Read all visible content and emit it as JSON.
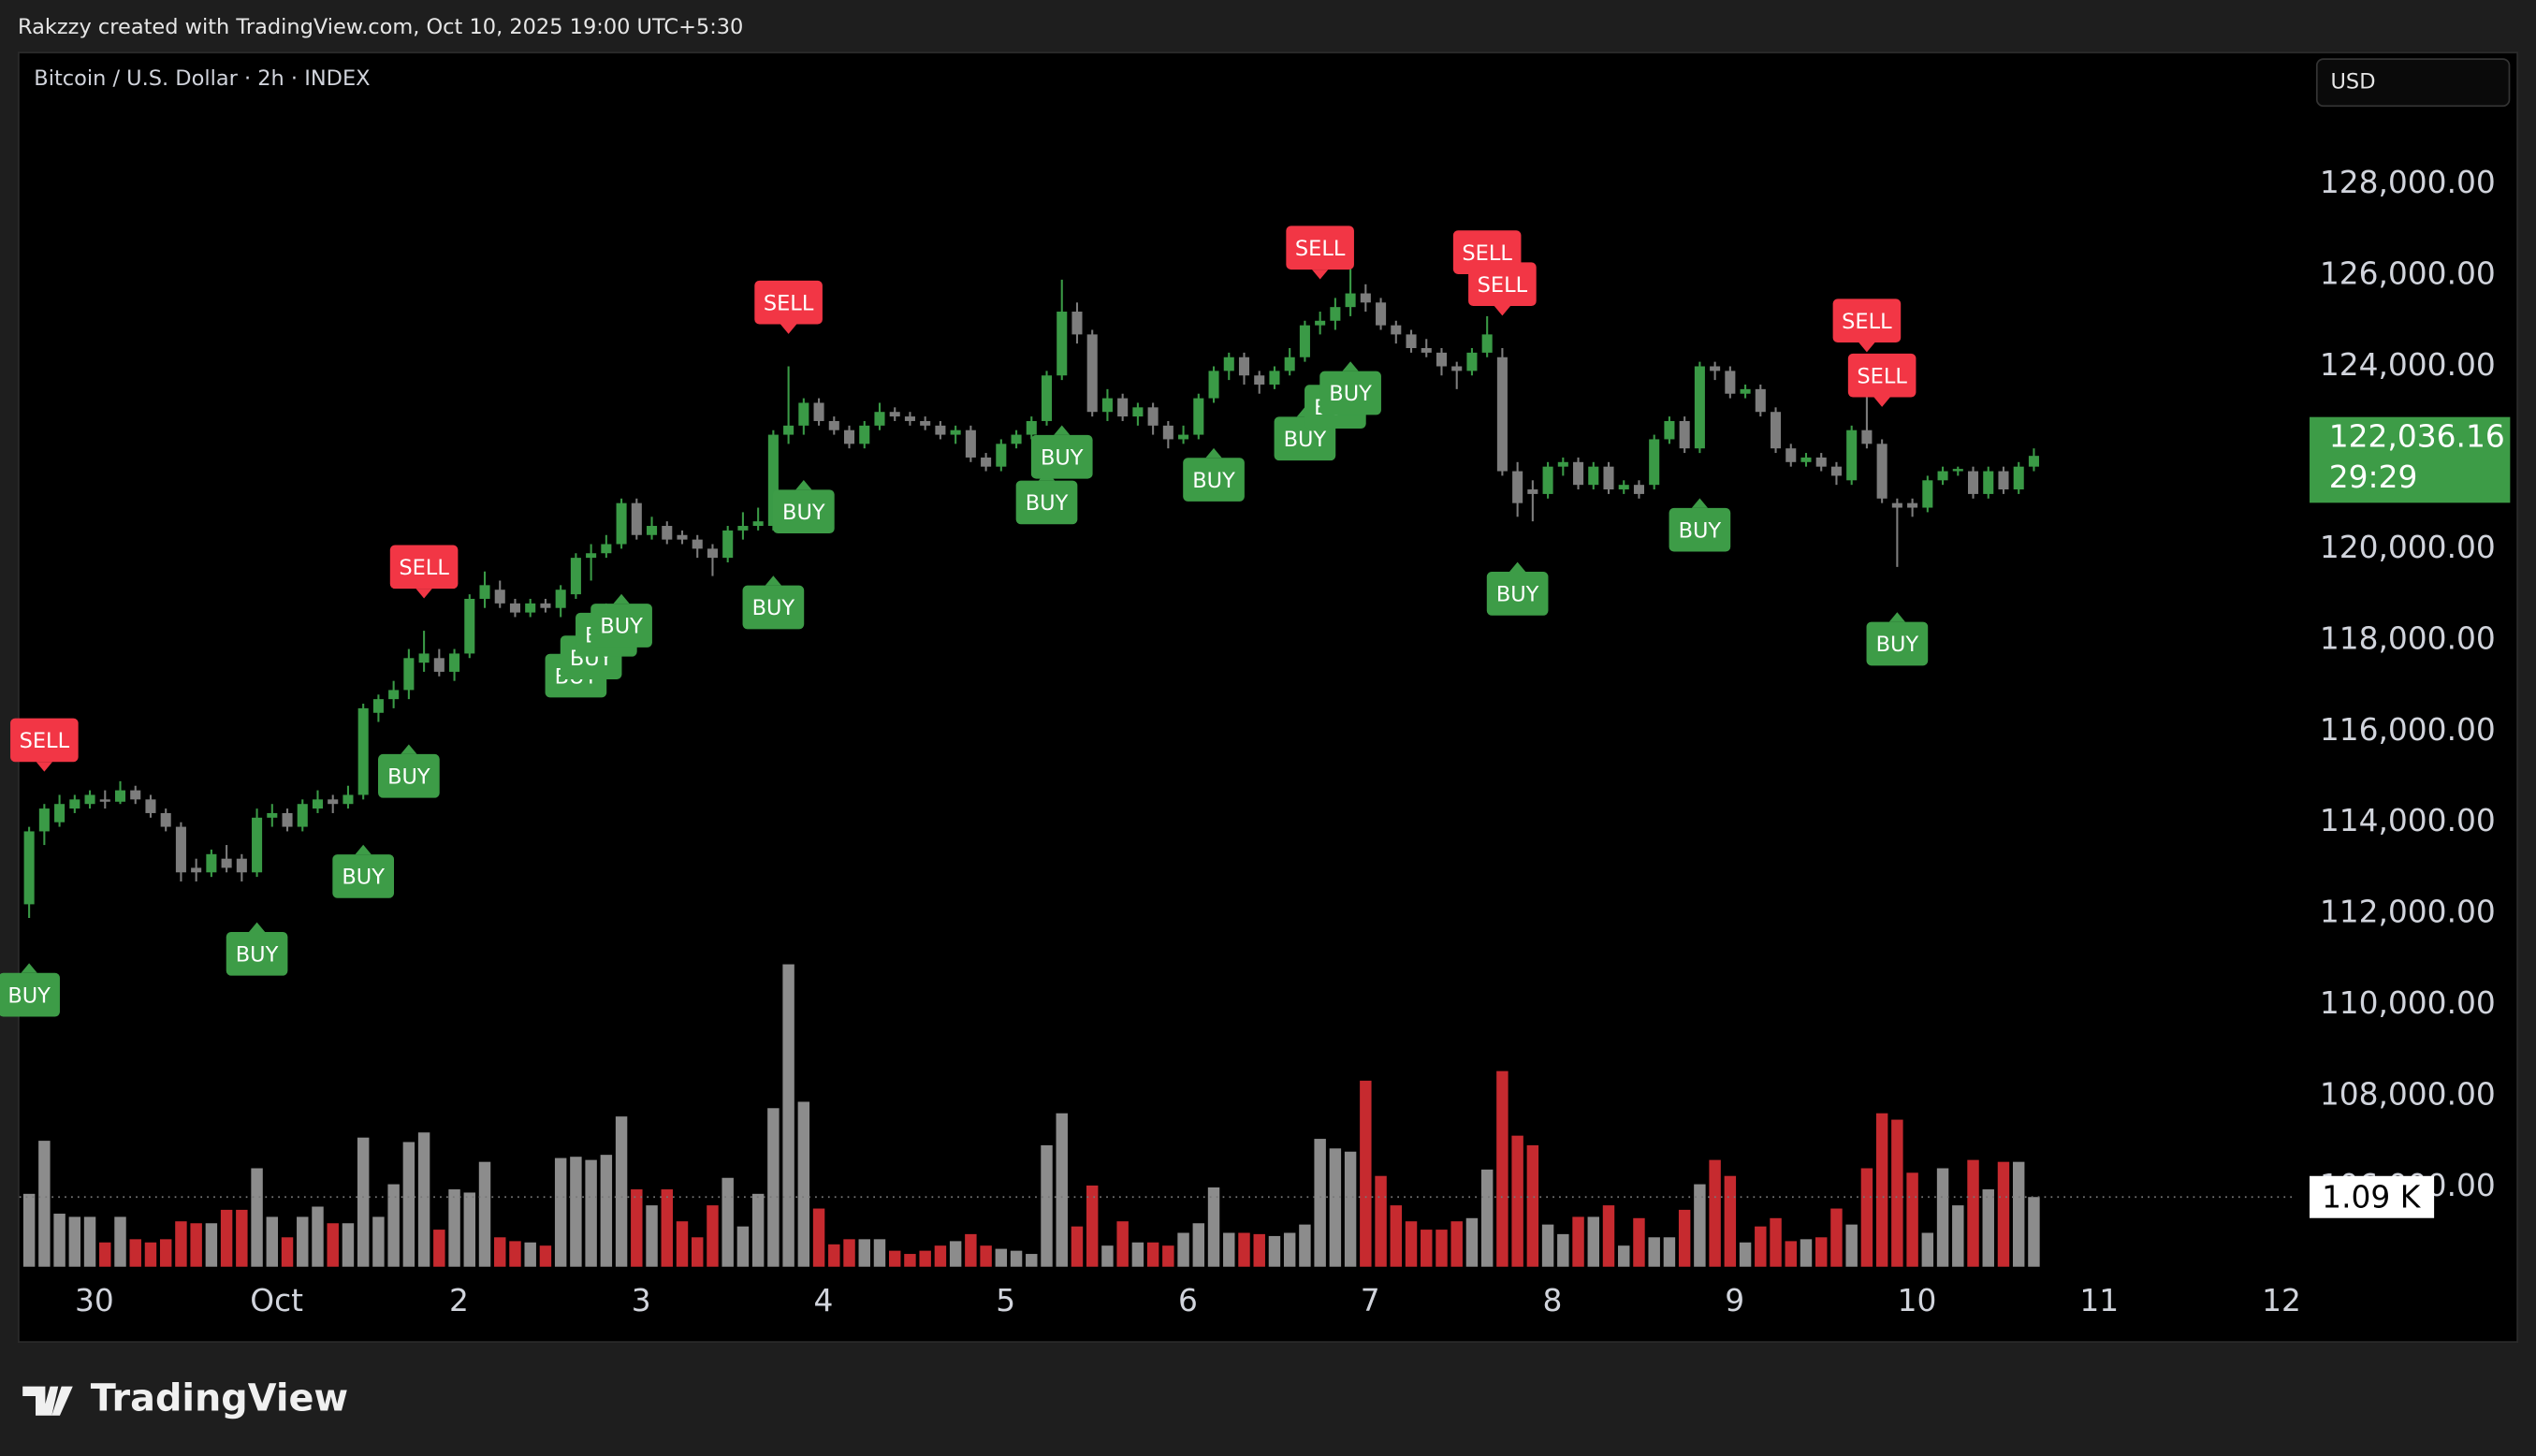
{
  "header": "Rakzzy created with TradingView.com, Oct 10, 2025 19:00 UTC+5:30",
  "logo": "TradingView",
  "chart_data": {
    "type": "candlestick",
    "title": "Bitcoin / U.S. Dollar · 2h · INDEX",
    "currency_button": "USD",
    "up_color": "#3a9a46",
    "down_color": "#7d7d7d",
    "volume_up_color": "#8c8c8c",
    "volume_down_color": "#c62a2f",
    "xlim": [
      -0.64,
      149.3
    ],
    "xticks": [
      {
        "value": 4.3,
        "label": "30"
      },
      {
        "value": 16.3,
        "label": "Oct"
      },
      {
        "value": 28.3,
        "label": "2"
      },
      {
        "value": 40.3,
        "label": "3"
      },
      {
        "value": 52.3,
        "label": "4"
      },
      {
        "value": 64.3,
        "label": "5"
      },
      {
        "value": 76.3,
        "label": "6"
      },
      {
        "value": 88.3,
        "label": "7"
      },
      {
        "value": 100.3,
        "label": "8"
      },
      {
        "value": 112.3,
        "label": "9"
      },
      {
        "value": 124.3,
        "label": "10"
      },
      {
        "value": 136.3,
        "label": "11"
      },
      {
        "value": 148.3,
        "label": "12"
      }
    ],
    "ylim": [
      104250,
      130900
    ],
    "yticks": [
      {
        "value": 106000,
        "label": "106,000.00"
      },
      {
        "value": 108000,
        "label": "108,000.00"
      },
      {
        "value": 110000,
        "label": "110,000.00"
      },
      {
        "value": 112000,
        "label": "112,000.00"
      },
      {
        "value": 114000,
        "label": "114,000.00"
      },
      {
        "value": 116000,
        "label": "116,000.00"
      },
      {
        "value": 118000,
        "label": "118,000.00"
      },
      {
        "value": 120000,
        "label": "120,000.00"
      },
      {
        "value": 122000,
        "label": "122,000.00"
      },
      {
        "value": 124000,
        "label": "124,000.00"
      },
      {
        "value": 126000,
        "label": "126,000.00"
      },
      {
        "value": 128000,
        "label": "128,000.00"
      }
    ],
    "candles": [
      [
        112200,
        113900,
        111900,
        113800
      ],
      [
        113800,
        114400,
        113500,
        114300
      ],
      [
        114000,
        114600,
        113900,
        114400
      ],
      [
        114300,
        114600,
        114200,
        114500
      ],
      [
        114400,
        114700,
        114300,
        114600
      ],
      [
        114500,
        114700,
        114300,
        114450
      ],
      [
        114450,
        114900,
        114400,
        114700
      ],
      [
        114700,
        114800,
        114400,
        114500
      ],
      [
        114500,
        114600,
        114100,
        114200
      ],
      [
        114200,
        114300,
        113800,
        113900
      ],
      [
        113900,
        114000,
        112700,
        112900
      ],
      [
        113000,
        113200,
        112700,
        112900
      ],
      [
        112900,
        113400,
        112800,
        113300
      ],
      [
        113200,
        113500,
        112900,
        113000
      ],
      [
        113200,
        113300,
        112700,
        112900
      ],
      [
        112900,
        114300,
        112800,
        114100
      ],
      [
        114100,
        114400,
        113900,
        114200
      ],
      [
        114200,
        114300,
        113800,
        113900
      ],
      [
        113900,
        114500,
        113800,
        114400
      ],
      [
        114300,
        114700,
        114200,
        114500
      ],
      [
        114500,
        114600,
        114200,
        114400
      ],
      [
        114400,
        114800,
        114300,
        114600
      ],
      [
        114600,
        116600,
        114500,
        116500
      ],
      [
        116400,
        116800,
        116200,
        116700
      ],
      [
        116700,
        117100,
        116500,
        116900
      ],
      [
        116900,
        117800,
        116700,
        117600
      ],
      [
        117500,
        118200,
        117300,
        117700
      ],
      [
        117600,
        117800,
        117200,
        117300
      ],
      [
        117300,
        117800,
        117100,
        117700
      ],
      [
        117700,
        119000,
        117600,
        118900
      ],
      [
        118900,
        119500,
        118700,
        119200
      ],
      [
        119100,
        119300,
        118700,
        118800
      ],
      [
        118800,
        118900,
        118500,
        118600
      ],
      [
        118600,
        118900,
        118500,
        118800
      ],
      [
        118800,
        118900,
        118600,
        118700
      ],
      [
        118700,
        119200,
        118500,
        119100
      ],
      [
        119000,
        119900,
        118900,
        119800
      ],
      [
        119800,
        120100,
        119300,
        119900
      ],
      [
        119900,
        120300,
        119800,
        120100
      ],
      [
        120100,
        121100,
        120000,
        121000
      ],
      [
        121000,
        121100,
        120200,
        120300
      ],
      [
        120300,
        120700,
        120200,
        120500
      ],
      [
        120500,
        120600,
        120100,
        120200
      ],
      [
        120300,
        120400,
        120100,
        120200
      ],
      [
        120200,
        120300,
        119800,
        120000
      ],
      [
        120000,
        120100,
        119400,
        119800
      ],
      [
        119800,
        120500,
        119700,
        120400
      ],
      [
        120400,
        120800,
        120200,
        120500
      ],
      [
        120500,
        120900,
        120400,
        120600
      ],
      [
        120500,
        122600,
        120400,
        122500
      ],
      [
        122500,
        124000,
        122300,
        122700
      ],
      [
        122700,
        123300,
        122500,
        123200
      ],
      [
        123200,
        123300,
        122700,
        122800
      ],
      [
        122800,
        122900,
        122500,
        122600
      ],
      [
        122600,
        122700,
        122200,
        122300
      ],
      [
        122300,
        122800,
        122200,
        122700
      ],
      [
        122700,
        123200,
        122600,
        123000
      ],
      [
        123000,
        123100,
        122800,
        122900
      ],
      [
        122900,
        123000,
        122700,
        122800
      ],
      [
        122800,
        122900,
        122600,
        122700
      ],
      [
        122700,
        122800,
        122400,
        122500
      ],
      [
        122500,
        122700,
        122300,
        122600
      ],
      [
        122600,
        122700,
        121900,
        122000
      ],
      [
        122000,
        122100,
        121700,
        121800
      ],
      [
        121800,
        122400,
        121700,
        122300
      ],
      [
        122300,
        122600,
        122200,
        122500
      ],
      [
        122500,
        122900,
        122400,
        122800
      ],
      [
        122800,
        123900,
        122700,
        123800
      ],
      [
        123800,
        125900,
        123700,
        125200
      ],
      [
        125200,
        125400,
        124500,
        124700
      ],
      [
        124700,
        124800,
        122900,
        123000
      ],
      [
        123000,
        123500,
        122800,
        123300
      ],
      [
        123300,
        123400,
        122800,
        122900
      ],
      [
        122900,
        123200,
        122700,
        123100
      ],
      [
        123100,
        123200,
        122500,
        122700
      ],
      [
        122700,
        122800,
        122200,
        122400
      ],
      [
        122400,
        122700,
        122300,
        122500
      ],
      [
        122500,
        123400,
        122400,
        123300
      ],
      [
        123300,
        124000,
        123200,
        123900
      ],
      [
        123900,
        124300,
        123700,
        124200
      ],
      [
        124200,
        124300,
        123600,
        123800
      ],
      [
        123800,
        123900,
        123400,
        123600
      ],
      [
        123600,
        124000,
        123500,
        123900
      ],
      [
        123900,
        124400,
        123800,
        124200
      ],
      [
        124200,
        125000,
        124100,
        124900
      ],
      [
        124900,
        125200,
        124700,
        125000
      ],
      [
        125000,
        125500,
        124800,
        125300
      ],
      [
        125300,
        126200,
        125100,
        125600
      ],
      [
        125600,
        125800,
        125200,
        125400
      ],
      [
        125400,
        125500,
        124800,
        124900
      ],
      [
        124900,
        125000,
        124500,
        124700
      ],
      [
        124700,
        124800,
        124300,
        124400
      ],
      [
        124400,
        124600,
        124200,
        124300
      ],
      [
        124300,
        124400,
        123800,
        124000
      ],
      [
        124000,
        124100,
        123500,
        123900
      ],
      [
        123900,
        124400,
        123800,
        124300
      ],
      [
        124300,
        125100,
        124200,
        124700
      ],
      [
        124200,
        124400,
        121600,
        121700
      ],
      [
        121700,
        121900,
        120700,
        121000
      ],
      [
        121300,
        121500,
        120600,
        121200
      ],
      [
        121200,
        121900,
        121100,
        121800
      ],
      [
        121800,
        122000,
        121600,
        121900
      ],
      [
        121900,
        122000,
        121300,
        121400
      ],
      [
        121400,
        121900,
        121300,
        121800
      ],
      [
        121800,
        121900,
        121200,
        121300
      ],
      [
        121300,
        121500,
        121200,
        121400
      ],
      [
        121400,
        121500,
        121100,
        121200
      ],
      [
        121400,
        122500,
        121300,
        122400
      ],
      [
        122400,
        122900,
        122300,
        122800
      ],
      [
        122800,
        122900,
        122100,
        122200
      ],
      [
        122200,
        124100,
        122100,
        124000
      ],
      [
        124000,
        124100,
        123700,
        123900
      ],
      [
        123900,
        124000,
        123300,
        123400
      ],
      [
        123400,
        123600,
        123300,
        123500
      ],
      [
        123500,
        123600,
        122900,
        123000
      ],
      [
        123000,
        123100,
        122100,
        122200
      ],
      [
        122200,
        122300,
        121800,
        121900
      ],
      [
        121900,
        122100,
        121800,
        122000
      ],
      [
        122000,
        122100,
        121700,
        121800
      ],
      [
        121800,
        121900,
        121400,
        121600
      ],
      [
        121500,
        122700,
        121400,
        122600
      ],
      [
        122600,
        123600,
        122200,
        122300
      ],
      [
        122300,
        122400,
        121000,
        121100
      ],
      [
        121000,
        121100,
        119600,
        120900
      ],
      [
        121000,
        121100,
        120700,
        120900
      ],
      [
        120900,
        121600,
        120800,
        121500
      ],
      [
        121500,
        121800,
        121400,
        121700
      ],
      [
        121700,
        121800,
        121600,
        121750
      ],
      [
        121700,
        121800,
        121100,
        121200
      ],
      [
        121200,
        121800,
        121100,
        121700
      ],
      [
        121700,
        121800,
        121200,
        121300
      ],
      [
        121300,
        121900,
        121200,
        121800
      ],
      [
        121800,
        122200,
        121700,
        122036.16
      ]
    ],
    "volume": [
      1.14,
      1.97,
      0.83,
      0.78,
      0.78,
      0.38,
      0.78,
      0.43,
      0.38,
      0.43,
      0.71,
      0.68,
      0.68,
      0.89,
      0.89,
      1.54,
      0.78,
      0.46,
      0.78,
      0.94,
      0.68,
      0.68,
      2.02,
      0.78,
      1.29,
      1.95,
      2.1,
      0.58,
      1.21,
      1.16,
      1.64,
      0.46,
      0.4,
      0.38,
      0.33,
      1.7,
      1.72,
      1.67,
      1.75,
      2.35,
      1.21,
      0.96,
      1.21,
      0.71,
      0.46,
      0.96,
      1.39,
      0.63,
      1.14,
      2.48,
      4.73,
      2.58,
      0.91,
      0.35,
      0.43,
      0.43,
      0.43,
      0.25,
      0.2,
      0.25,
      0.33,
      0.4,
      0.51,
      0.33,
      0.28,
      0.25,
      0.2,
      1.9,
      2.4,
      0.63,
      1.27,
      0.33,
      0.71,
      0.38,
      0.38,
      0.33,
      0.53,
      0.68,
      1.24,
      0.53,
      0.53,
      0.51,
      0.48,
      0.53,
      0.66,
      2.0,
      1.85,
      1.8,
      2.91,
      1.42,
      0.96,
      0.71,
      0.58,
      0.58,
      0.71,
      0.76,
      1.52,
      3.06,
      2.05,
      1.9,
      0.66,
      0.51,
      0.78,
      0.78,
      0.96,
      0.33,
      0.76,
      0.46,
      0.46,
      0.89,
      1.29,
      1.67,
      1.42,
      0.38,
      0.63,
      0.76,
      0.4,
      0.43,
      0.46,
      0.91,
      0.66,
      1.54,
      2.4,
      2.3,
      1.47,
      0.53,
      1.54,
      0.96,
      1.67,
      1.21,
      1.64,
      1.64,
      1.09
    ],
    "volume_ylim": [
      0,
      5
    ],
    "volume_label": {
      "value": 1.09,
      "label": "1.09 K"
    },
    "last_price": {
      "value": 122036.16,
      "label": "122,036.16"
    },
    "countdown": "29:29",
    "signals": [
      {
        "candle": 1,
        "label": "SELL"
      },
      {
        "candle": 26,
        "label": "SELL"
      },
      {
        "candle": 50,
        "label": "SELL"
      },
      {
        "candle": 85,
        "label": "SELL"
      },
      {
        "candle": 96,
        "label": "SELL"
      },
      {
        "candle": 97,
        "label": "SELL"
      },
      {
        "candle": 121,
        "label": "SELL"
      },
      {
        "candle": 122,
        "label": "SELL"
      },
      {
        "candle": 0,
        "label": "BUY"
      },
      {
        "candle": 15,
        "label": "BUY"
      },
      {
        "candle": 22,
        "label": "BUY"
      },
      {
        "candle": 25,
        "label": "BUY"
      },
      {
        "candle": 36,
        "label": "BUY"
      },
      {
        "candle": 37,
        "label": "BUY"
      },
      {
        "candle": 38,
        "label": "BUY"
      },
      {
        "candle": 39,
        "label": "BUY"
      },
      {
        "candle": 49,
        "label": "BUY"
      },
      {
        "candle": 51,
        "label": "BUY"
      },
      {
        "candle": 67,
        "label": "BUY"
      },
      {
        "candle": 68,
        "label": "BUY"
      },
      {
        "candle": 78,
        "label": "BUY"
      },
      {
        "candle": 84,
        "label": "BUY"
      },
      {
        "candle": 86,
        "label": "BUY"
      },
      {
        "candle": 87,
        "label": "BUY"
      },
      {
        "candle": 98,
        "label": "BUY"
      },
      {
        "candle": 110,
        "label": "BUY"
      },
      {
        "candle": 123,
        "label": "BUY"
      }
    ]
  }
}
